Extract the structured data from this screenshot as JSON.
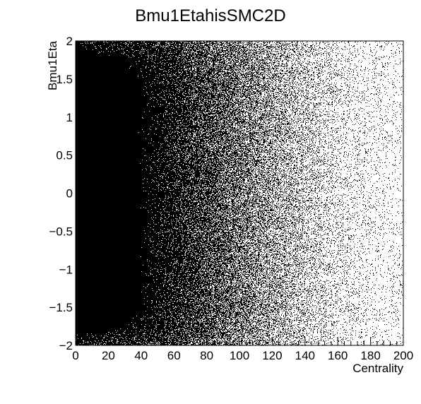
{
  "chart_data": {
    "type": "scatter",
    "title": "Bmu1EtahisSMC2D",
    "xlabel": "Centrality",
    "ylabel": "Bmu1Eta",
    "xlim": [
      0,
      200
    ],
    "ylim": [
      -2,
      2
    ],
    "x_ticks": [
      0,
      20,
      40,
      60,
      80,
      100,
      120,
      140,
      160,
      180,
      200
    ],
    "x_tick_labels": [
      "0",
      "20",
      "40",
      "60",
      "80",
      "100",
      "120",
      "140",
      "160",
      "180",
      "200"
    ],
    "y_ticks": [
      -2,
      -1.5,
      -1,
      -0.5,
      0,
      0.5,
      1,
      1.5,
      2
    ],
    "y_tick_labels": [
      "−2",
      "−1.5",
      "−1",
      "−0.5",
      "0",
      "0.5",
      "1",
      "1.5",
      "2"
    ],
    "grid": false,
    "legend": "none",
    "marker_color": "#000000",
    "x_profile": [
      [
        0,
        1.0
      ],
      [
        20,
        0.97
      ],
      [
        40,
        0.92
      ],
      [
        60,
        0.82
      ],
      [
        80,
        0.68
      ],
      [
        100,
        0.5
      ],
      [
        120,
        0.34
      ],
      [
        140,
        0.2
      ],
      [
        160,
        0.11
      ],
      [
        180,
        0.06
      ],
      [
        200,
        0.04
      ]
    ],
    "y_profile": [
      [
        -2,
        0.8
      ],
      [
        -1.8,
        0.95
      ],
      [
        -1.5,
        1.0
      ],
      [
        0,
        1.0
      ],
      [
        1.5,
        1.0
      ],
      [
        1.8,
        0.95
      ],
      [
        2,
        0.85
      ]
    ]
  }
}
